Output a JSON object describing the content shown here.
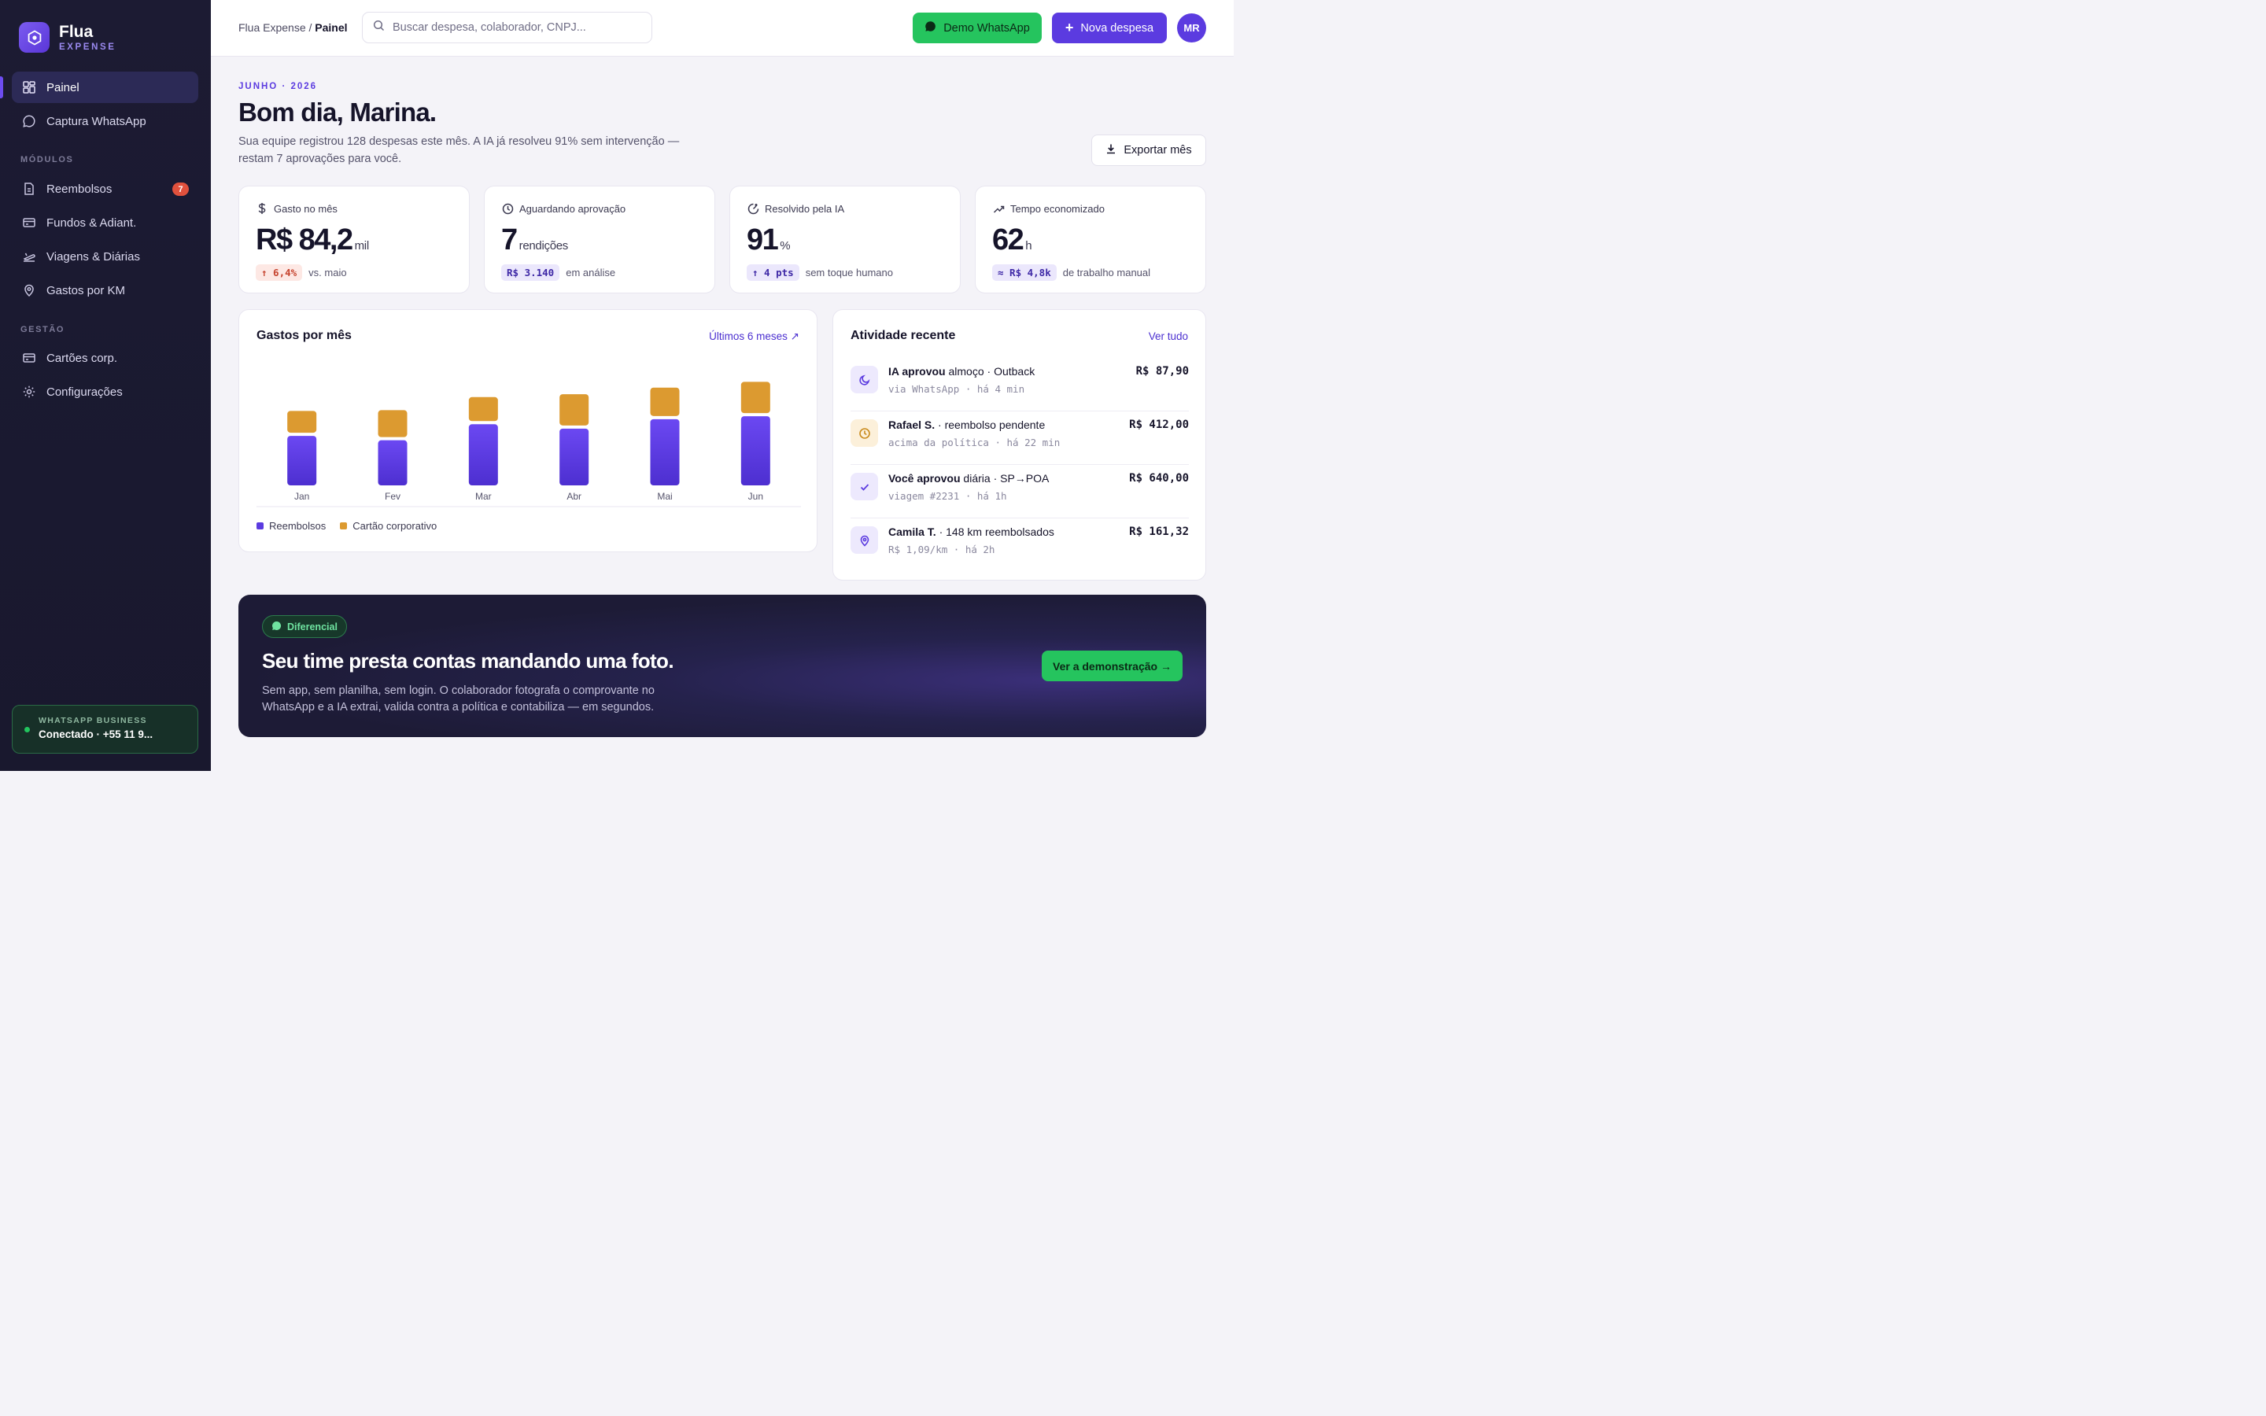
{
  "brand": {
    "name": "Flua",
    "sub": "EXPENSE"
  },
  "nav": {
    "primary": [
      {
        "label": "Painel",
        "icon": "grid-icon"
      },
      {
        "label": "Captura WhatsApp",
        "icon": "whatsapp-icon"
      }
    ],
    "modules_title": "MÓDULOS",
    "modules": [
      {
        "label": "Reembolsos",
        "icon": "receipt-icon",
        "badge": "7"
      },
      {
        "label": "Fundos & Adiant.",
        "icon": "card-icon"
      },
      {
        "label": "Viagens & Diárias",
        "icon": "plane-icon"
      },
      {
        "label": "Gastos por KM",
        "icon": "pin-icon"
      }
    ],
    "management_title": "GESTÃO",
    "management": [
      {
        "label": "Cartões corp.",
        "icon": "card-icon"
      },
      {
        "label": "Configurações",
        "icon": "gear-icon"
      }
    ]
  },
  "whatsapp_status": {
    "label": "WHATSAPP BUSINESS",
    "status": "Conectado · +55 11 9..."
  },
  "topbar": {
    "breadcrumb_root": "Flua Expense /",
    "breadcrumb_current": "Painel",
    "search_placeholder": "Buscar despesa, colaborador, CNPJ...",
    "demo_whatsapp": "Demo WhatsApp",
    "new_expense": "Nova despesa",
    "avatar": "MR"
  },
  "header": {
    "eyebrow": "JUNHO · 2026",
    "greeting": "Bom dia, Marina.",
    "subtitle": "Sua equipe registrou 128 despesas este mês. A IA já resolveu 91% sem intervenção — restam 7 aprovações para você.",
    "export": "Exportar mês"
  },
  "kpis": [
    {
      "title": "Gasto no mês",
      "icon": "dollar-icon",
      "value": "R$ 84,2",
      "unit": "mil",
      "chip": "↑ 6,4%",
      "chip_style": "red",
      "foot": "vs. maio"
    },
    {
      "title": "Aguardando aprovação",
      "icon": "clock-icon",
      "value": "7",
      "unit": "rendições",
      "chip": "R$ 3.140",
      "chip_style": "purple",
      "foot": "em análise"
    },
    {
      "title": "Resolvido pela IA",
      "icon": "progress-icon",
      "value": "91",
      "unit": "%",
      "chip": "↑ 4 pts",
      "chip_style": "purple",
      "foot": "sem toque humano"
    },
    {
      "title": "Tempo economizado",
      "icon": "trend-icon",
      "value": "62",
      "unit": "h",
      "chip": "≈ R$ 4,8k",
      "chip_style": "purple",
      "foot": "de trabalho manual"
    }
  ],
  "chart_card": {
    "title": "Gastos por mês",
    "link": "Últimos 6 meses ↗"
  },
  "chart_data": {
    "type": "bar",
    "stacked": true,
    "categories": [
      "Jan",
      "Fev",
      "Mar",
      "Abr",
      "Mai",
      "Jun"
    ],
    "series": [
      {
        "name": "Reembolsos",
        "values": [
          68,
          62,
          84,
          78,
          91,
          95
        ],
        "color": "#5b3be0"
      },
      {
        "name": "Cartão corporativo",
        "values": [
          30,
          37,
          33,
          43,
          39,
          43
        ],
        "color": "#dc9a30"
      }
    ],
    "ylim": [
      0,
      160
    ],
    "grid": false,
    "legend": "bottom-left"
  },
  "activity": {
    "title": "Atividade recente",
    "link": "Ver tudo",
    "items": [
      {
        "icon": "moon-icon",
        "icon_bg": "#ede9fd",
        "icon_color": "#5b3be0",
        "strong": "IA aprovou",
        "rest": " almoço · Outback",
        "sub": "via WhatsApp · há 4 min",
        "amount": "R$ 87,90"
      },
      {
        "icon": "clock-icon",
        "icon_bg": "#fcf0da",
        "icon_color": "#c98a1c",
        "strong": "Rafael S.",
        "rest": " · reembolso pendente",
        "sub": "acima da política · há 22 min",
        "amount": "R$ 412,00"
      },
      {
        "icon": "check-icon",
        "icon_bg": "#ede9fd",
        "icon_color": "#5b3be0",
        "strong": "Você aprovou",
        "rest": " diária · SP→POA",
        "sub": "viagem #2231 · há 1h",
        "amount": "R$ 640,00"
      },
      {
        "icon": "pin-icon",
        "icon_bg": "#ede9fd",
        "icon_color": "#5b3be0",
        "strong": "Camila T.",
        "rest": " · 148 km reembolsados",
        "sub": "R$ 1,09/km · há 2h",
        "amount": "R$ 161,32"
      }
    ]
  },
  "promo": {
    "badge": "Diferencial",
    "title": "Seu time presta contas mandando uma foto.",
    "text": "Sem app, sem planilha, sem login. O colaborador fotografa o comprovante no WhatsApp e a IA extrai, valida contra a política e contabiliza — em segundos.",
    "cta": "Ver a demonstração →"
  },
  "colors": {
    "accent": "#5b3be0",
    "whatsapp": "#25c45e",
    "sidebar": "#1c1b33",
    "alert": "#e0513d"
  }
}
